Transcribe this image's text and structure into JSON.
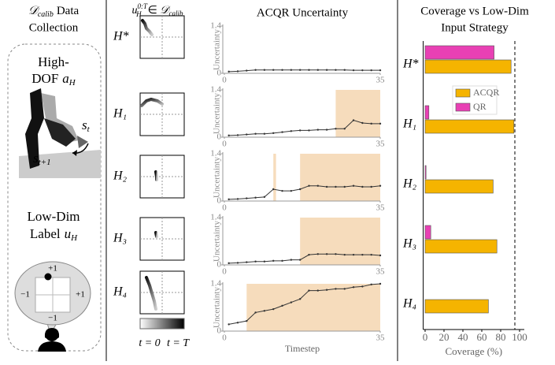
{
  "data_collection": {
    "symbol": "𝒟",
    "symbol_sub": "calib",
    "title_lines": [
      "Data",
      "Collection"
    ],
    "robot_lines": [
      "High-",
      "DOF"
    ],
    "action": "a",
    "action_sub": "H",
    "state": "s",
    "state_sub": "t",
    "next_state_sub": "t+1",
    "label_lines": [
      "Low-Dim",
      "Label"
    ],
    "label_var": "u",
    "label_var_sub": "H",
    "axis_labels": [
      "+1",
      "−1",
      "+1",
      "−1"
    ]
  },
  "trajectories": {
    "var": "u",
    "var_sub": "H",
    "var_sup": "0:T",
    "member": "∈ ",
    "set": "𝒟",
    "set_sub": "calib",
    "labels": [
      "H*",
      "H₁",
      "H₂",
      "H₃",
      "H₄"
    ],
    "colorbar": [
      "t = 0",
      "t = T"
    ]
  },
  "chart_data": [
    {
      "type": "line",
      "title": "ACQR Uncertainty",
      "ylabel": "Uncertainty",
      "x": [
        1,
        3,
        5,
        7,
        9,
        11,
        13,
        15,
        17,
        19,
        21,
        23,
        25,
        27,
        29,
        31,
        33,
        35
      ],
      "series": [
        {
          "color": "#333333",
          "values": [
            0.05,
            0.06,
            0.08,
            0.1,
            0.1,
            0.1,
            0.1,
            0.1,
            0.1,
            0.1,
            0.1,
            0.1,
            0.1,
            0.1,
            0.09,
            0.09,
            0.09,
            0.09
          ]
        }
      ],
      "xlim": [
        0,
        35
      ],
      "xticks": [
        0,
        35
      ],
      "ylim": [
        0,
        1.4
      ],
      "yticks": [
        0,
        1.4
      ],
      "shaded": [],
      "shade_color": "#f6dcbc"
    },
    {
      "type": "line",
      "ylabel": "Uncertainty",
      "x": [
        1,
        3,
        5,
        7,
        9,
        11,
        13,
        15,
        17,
        19,
        21,
        23,
        25,
        27,
        29,
        31,
        33,
        35
      ],
      "series": [
        {
          "color": "#333333",
          "values": [
            0.05,
            0.06,
            0.08,
            0.1,
            0.1,
            0.12,
            0.15,
            0.18,
            0.2,
            0.2,
            0.22,
            0.22,
            0.25,
            0.25,
            0.5,
            0.42,
            0.4,
            0.4
          ]
        }
      ],
      "xlim": [
        0,
        35
      ],
      "xticks": [
        0,
        35
      ],
      "ylim": [
        0,
        1.4
      ],
      "yticks": [
        0,
        1.4
      ],
      "shaded": [
        [
          25,
          35
        ]
      ],
      "shade_color": "#f6dcbc"
    },
    {
      "type": "line",
      "ylabel": "Uncertainty",
      "x": [
        1,
        3,
        5,
        7,
        9,
        11,
        13,
        15,
        17,
        19,
        21,
        23,
        25,
        27,
        29,
        31,
        33,
        35
      ],
      "series": [
        {
          "color": "#333333",
          "values": [
            0.05,
            0.06,
            0.08,
            0.1,
            0.12,
            0.35,
            0.3,
            0.3,
            0.35,
            0.45,
            0.45,
            0.42,
            0.42,
            0.42,
            0.45,
            0.42,
            0.42,
            0.45
          ]
        }
      ],
      "xlim": [
        0,
        35
      ],
      "xticks": [
        0,
        35
      ],
      "ylim": [
        0,
        1.4
      ],
      "yticks": [
        0,
        1.4
      ],
      "shaded": [
        [
          11,
          11.6
        ],
        [
          17,
          35
        ]
      ],
      "shade_color": "#f6dcbc"
    },
    {
      "type": "line",
      "ylabel": "Uncertainty",
      "x": [
        1,
        3,
        5,
        7,
        9,
        11,
        13,
        15,
        17,
        19,
        21,
        23,
        25,
        27,
        29,
        31,
        33,
        35
      ],
      "series": [
        {
          "color": "#333333",
          "values": [
            0.05,
            0.06,
            0.08,
            0.1,
            0.1,
            0.12,
            0.12,
            0.15,
            0.15,
            0.3,
            0.32,
            0.32,
            0.32,
            0.3,
            0.3,
            0.3,
            0.3,
            0.28
          ]
        }
      ],
      "xlim": [
        0,
        35
      ],
      "xticks": [
        0,
        35
      ],
      "ylim": [
        0,
        1.4
      ],
      "yticks": [
        0,
        1.4
      ],
      "shaded": [
        [
          17,
          35
        ]
      ],
      "shade_color": "#f6dcbc"
    },
    {
      "type": "line",
      "ylabel": "Uncertainty",
      "xlabel": "Timestep",
      "x": [
        1,
        3,
        5,
        7,
        9,
        11,
        13,
        15,
        17,
        19,
        21,
        23,
        25,
        27,
        29,
        31,
        33,
        35
      ],
      "series": [
        {
          "color": "#333333",
          "values": [
            0.2,
            0.25,
            0.3,
            0.55,
            0.6,
            0.65,
            0.75,
            0.85,
            0.95,
            1.2,
            1.2,
            1.22,
            1.25,
            1.25,
            1.3,
            1.32,
            1.38,
            1.4
          ]
        }
      ],
      "xlim": [
        0,
        35
      ],
      "xticks": [
        0,
        35
      ],
      "ylim": [
        0,
        1.4
      ],
      "yticks": [
        0,
        1.4
      ],
      "shaded": [
        [
          5,
          35
        ]
      ],
      "shade_color": "#f6dcbc"
    },
    {
      "type": "hbar",
      "title": [
        "Coverage vs Low-Dim",
        "Input Strategy"
      ],
      "xlabel": "Coverage (%)",
      "categories": [
        "H*",
        "H₁",
        "H₂",
        "H₃",
        "H₄"
      ],
      "series": [
        {
          "name": "ACQR",
          "color": "#f5b400",
          "values": [
            91,
            94,
            72,
            76,
            67
          ]
        },
        {
          "name": "QR",
          "color": "#e840b4",
          "values": [
            73,
            4,
            1,
            6,
            0
          ]
        }
      ],
      "xlim": [
        -2,
        105
      ],
      "xticks": [
        0,
        20,
        40,
        60,
        80,
        100
      ],
      "target": 95,
      "legend": "upper right"
    }
  ]
}
